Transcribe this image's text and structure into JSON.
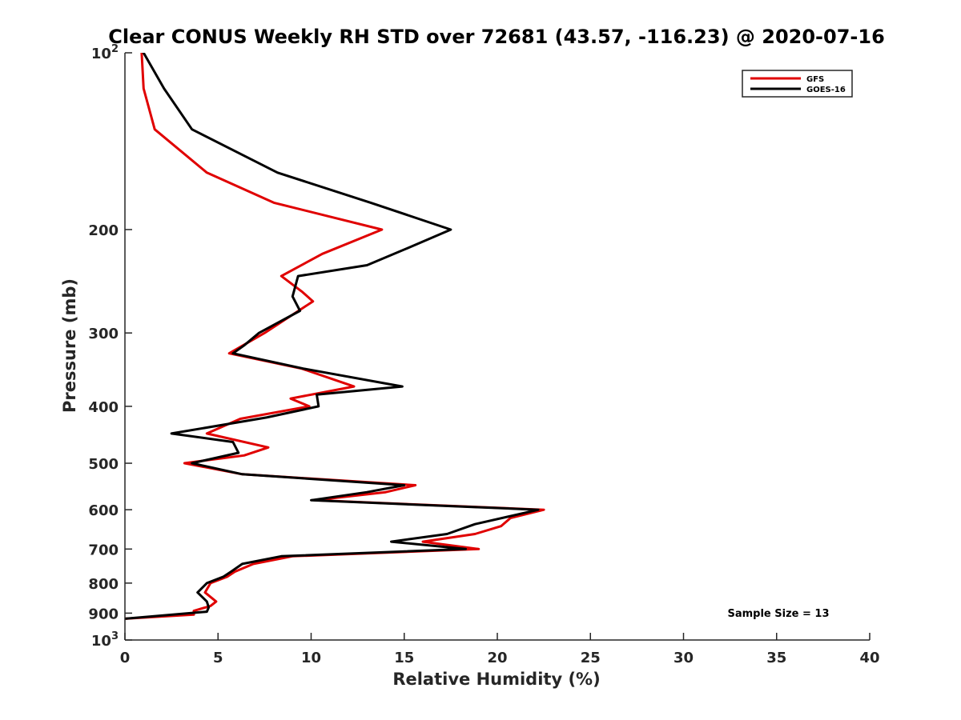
{
  "chart_data": {
    "type": "line",
    "title": "Clear CONUS Weekly RH STD over 72681 (43.57, -116.23) @ 2020-07-16",
    "xlabel": "Relative Humidity (%)",
    "ylabel": "Pressure (mb)",
    "xlim": [
      0,
      40
    ],
    "ylim": [
      100,
      1000
    ],
    "y_scale": "log",
    "y_reversed": true,
    "x_ticks": [
      {
        "value": 0,
        "label": "0"
      },
      {
        "value": 5,
        "label": "5"
      },
      {
        "value": 10,
        "label": "10"
      },
      {
        "value": 15,
        "label": "15"
      },
      {
        "value": 20,
        "label": "20"
      },
      {
        "value": 25,
        "label": "25"
      },
      {
        "value": 30,
        "label": "30"
      },
      {
        "value": 35,
        "label": "35"
      },
      {
        "value": 40,
        "label": "40"
      }
    ],
    "y_ticks": [
      {
        "value": 100,
        "base": "10",
        "exp": "2"
      },
      {
        "value": 200,
        "base": "200",
        "exp": ""
      },
      {
        "value": 300,
        "base": "300",
        "exp": ""
      },
      {
        "value": 400,
        "base": "400",
        "exp": ""
      },
      {
        "value": 500,
        "base": "500",
        "exp": ""
      },
      {
        "value": 600,
        "base": "600",
        "exp": ""
      },
      {
        "value": 700,
        "base": "700",
        "exp": ""
      },
      {
        "value": 800,
        "base": "800",
        "exp": ""
      },
      {
        "value": 900,
        "base": "900",
        "exp": ""
      },
      {
        "value": 1000,
        "base": "10",
        "exp": "3"
      }
    ],
    "grid": false,
    "legend_position": "top-right",
    "annotation": "Sample Size = 13",
    "series": [
      {
        "name": "GFS",
        "color": "#e00000",
        "points": [
          [
            0.9,
            100
          ],
          [
            1.0,
            115
          ],
          [
            1.6,
            135
          ],
          [
            4.4,
            160
          ],
          [
            8.0,
            180
          ],
          [
            13.8,
            200
          ],
          [
            10.6,
            220
          ],
          [
            8.4,
            240
          ],
          [
            9.5,
            255
          ],
          [
            10.1,
            265
          ],
          [
            7.5,
            300
          ],
          [
            5.6,
            325
          ],
          [
            9.5,
            345
          ],
          [
            12.3,
            370
          ],
          [
            8.9,
            388
          ],
          [
            9.9,
            400
          ],
          [
            6.2,
            420
          ],
          [
            4.4,
            445
          ],
          [
            7.7,
            470
          ],
          [
            6.4,
            485
          ],
          [
            3.2,
            500
          ],
          [
            6.3,
            522
          ],
          [
            15.6,
            545
          ],
          [
            14.0,
            560
          ],
          [
            10.2,
            578
          ],
          [
            22.5,
            600
          ],
          [
            20.7,
            620
          ],
          [
            20.2,
            640
          ],
          [
            18.8,
            660
          ],
          [
            16.0,
            680
          ],
          [
            19.0,
            700
          ],
          [
            9.0,
            720
          ],
          [
            6.9,
            742
          ],
          [
            5.9,
            765
          ],
          [
            5.5,
            780
          ],
          [
            4.6,
            800
          ],
          [
            4.3,
            830
          ],
          [
            4.9,
            860
          ],
          [
            4.6,
            875
          ],
          [
            3.7,
            892
          ],
          [
            3.7,
            905
          ],
          [
            0.0,
            920
          ]
        ]
      },
      {
        "name": "GOES-16",
        "color": "#000000",
        "points": [
          [
            1.0,
            100
          ],
          [
            2.1,
            115
          ],
          [
            3.6,
            135
          ],
          [
            8.2,
            160
          ],
          [
            13.2,
            180
          ],
          [
            17.5,
            200
          ],
          [
            15.2,
            215
          ],
          [
            13.0,
            230
          ],
          [
            9.3,
            240
          ],
          [
            9.0,
            260
          ],
          [
            9.4,
            275
          ],
          [
            7.2,
            300
          ],
          [
            6.4,
            315
          ],
          [
            5.8,
            325
          ],
          [
            9.6,
            345
          ],
          [
            14.9,
            370
          ],
          [
            10.3,
            382
          ],
          [
            10.4,
            400
          ],
          [
            7.6,
            418
          ],
          [
            2.5,
            445
          ],
          [
            5.8,
            460
          ],
          [
            6.1,
            480
          ],
          [
            3.6,
            500
          ],
          [
            6.3,
            522
          ],
          [
            15.0,
            545
          ],
          [
            13.0,
            560
          ],
          [
            10.0,
            578
          ],
          [
            22.2,
            600
          ],
          [
            18.8,
            635
          ],
          [
            17.3,
            660
          ],
          [
            14.3,
            680
          ],
          [
            18.3,
            700
          ],
          [
            8.4,
            720
          ],
          [
            6.3,
            742
          ],
          [
            5.7,
            765
          ],
          [
            5.3,
            780
          ],
          [
            4.4,
            800
          ],
          [
            3.9,
            830
          ],
          [
            4.4,
            860
          ],
          [
            4.5,
            880
          ],
          [
            4.4,
            895
          ],
          [
            0.0,
            920
          ]
        ]
      }
    ]
  }
}
